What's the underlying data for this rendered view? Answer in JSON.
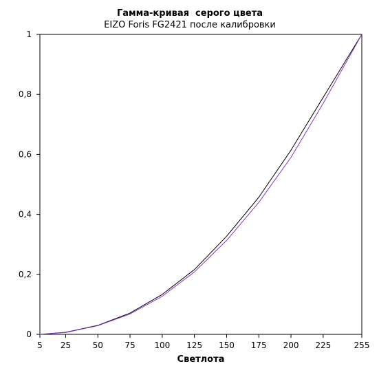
{
  "chart_data": {
    "type": "line",
    "title": "Гамма-кривая  серого цвета",
    "subtitle": "EIZO Foris FG2421 после калибровки",
    "xlabel": "Светлота",
    "ylabel": "",
    "x": [
      5,
      25,
      50,
      75,
      100,
      125,
      150,
      175,
      200,
      225,
      255
    ],
    "xlim": [
      5,
      255
    ],
    "ylim": [
      0,
      1
    ],
    "x_ticks": [
      5,
      25,
      50,
      75,
      100,
      125,
      150,
      175,
      200,
      225,
      255
    ],
    "y_ticks": [
      0,
      0.2,
      0.4,
      0.6,
      0.8,
      1
    ],
    "y_tick_labels": [
      "0",
      "0,2",
      "0,4",
      "0,6",
      "0,8",
      "1"
    ],
    "grid": false,
    "legend": "none",
    "series": [
      {
        "color": "#000000",
        "values": [
          0,
          0.007,
          0.03,
          0.071,
          0.133,
          0.216,
          0.327,
          0.457,
          0.614,
          0.79,
          1
        ]
      },
      {
        "color": "#8833cc",
        "values": [
          0,
          0.006,
          0.029,
          0.068,
          0.127,
          0.208,
          0.313,
          0.44,
          0.59,
          0.77,
          1
        ]
      }
    ]
  }
}
